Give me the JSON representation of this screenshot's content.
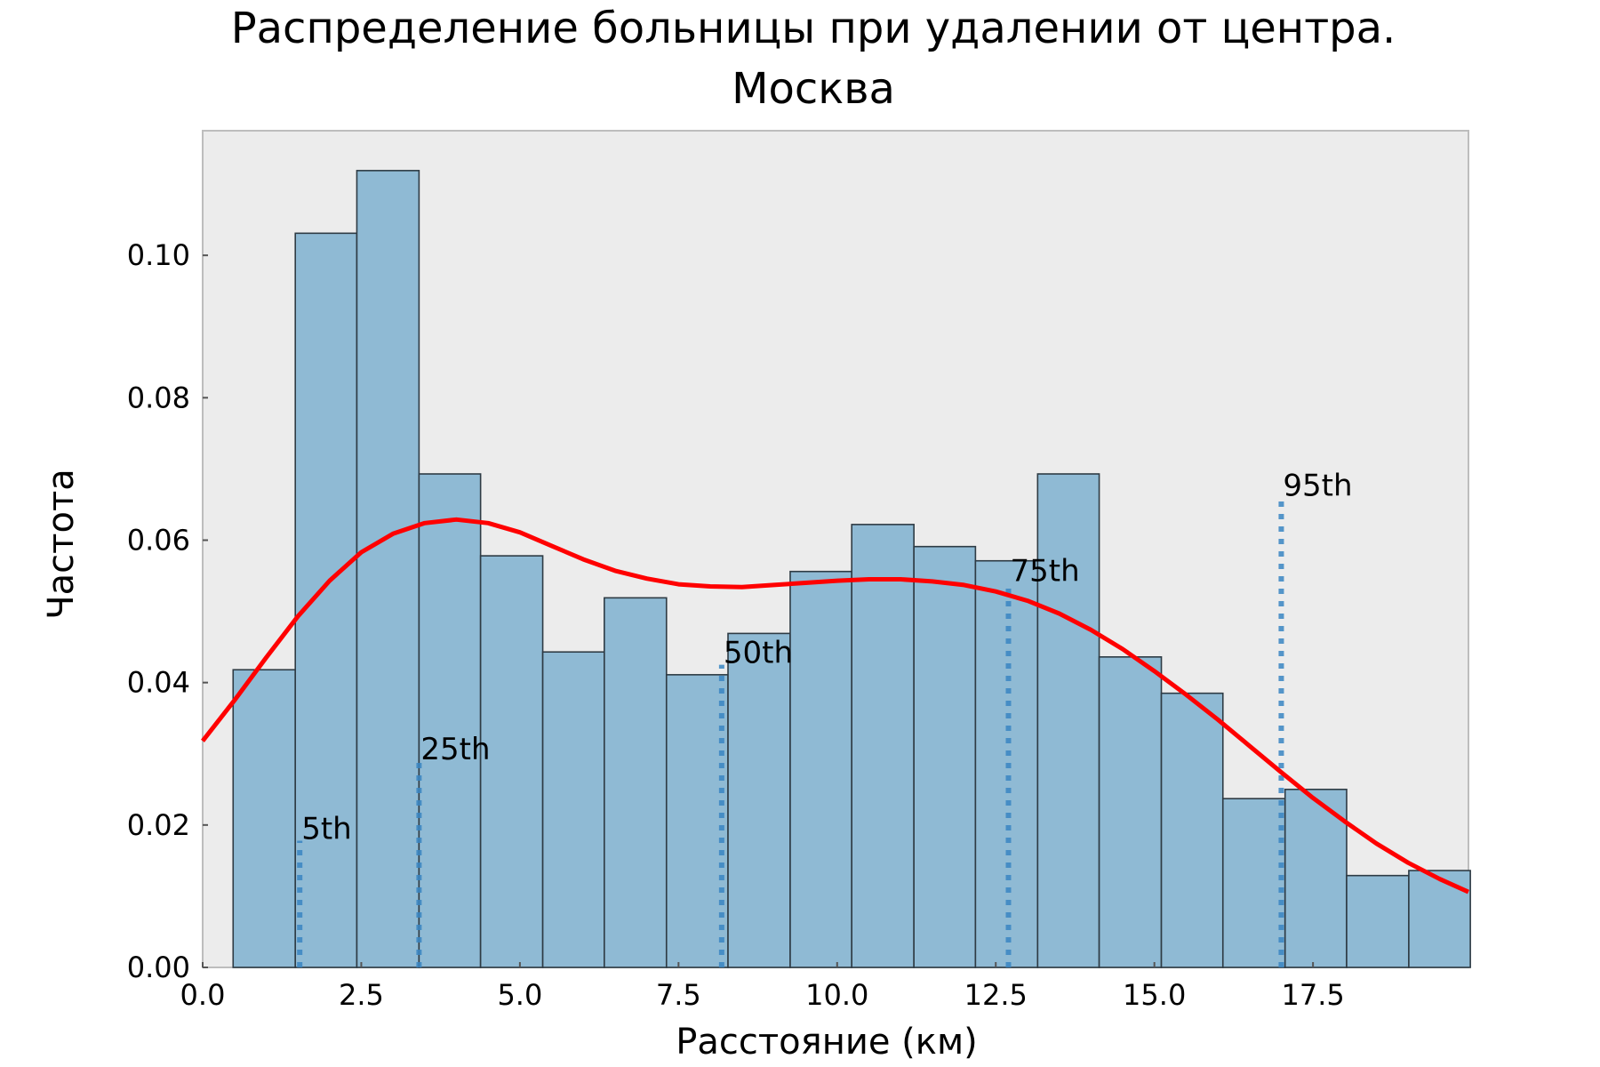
{
  "chart_data": {
    "type": "bar",
    "title": "Распределение больницы при удалении от центра.",
    "subtitle": "Москва",
    "xlabel": "Расстояние (км)",
    "ylabel": "Частота",
    "xlim": [
      0,
      19.95
    ],
    "ylim": [
      0,
      0.1175
    ],
    "x_ticks": [
      "0.0",
      "2.5",
      "5.0",
      "7.5",
      "10.0",
      "12.5",
      "15.0",
      "17.5"
    ],
    "x_tick_values": [
      0,
      2.5,
      5.0,
      7.5,
      10.0,
      12.5,
      15.0,
      17.5
    ],
    "y_ticks": [
      "0.00",
      "0.02",
      "0.04",
      "0.06",
      "0.08",
      "0.10"
    ],
    "y_tick_values": [
      0,
      0.02,
      0.04,
      0.06,
      0.08,
      0.1
    ],
    "grid": false,
    "bar_color": "#8fbad4",
    "bar_edge_color": "#2e3b44",
    "background_color": "#ececec",
    "kde_color": "#ff0000",
    "percentile_color": "#3a86c3",
    "bins": [
      {
        "x0": 0.48,
        "x1": 1.46,
        "value": 0.0418
      },
      {
        "x0": 1.46,
        "x1": 2.43,
        "value": 0.1031
      },
      {
        "x0": 2.43,
        "x1": 3.41,
        "value": 0.1119
      },
      {
        "x0": 3.41,
        "x1": 4.38,
        "value": 0.0693
      },
      {
        "x0": 4.38,
        "x1": 5.36,
        "value": 0.0578
      },
      {
        "x0": 5.36,
        "x1": 6.33,
        "value": 0.0443
      },
      {
        "x0": 6.33,
        "x1": 7.31,
        "value": 0.0519
      },
      {
        "x0": 7.31,
        "x1": 8.28,
        "value": 0.0411
      },
      {
        "x0": 8.28,
        "x1": 9.26,
        "value": 0.0469
      },
      {
        "x0": 9.26,
        "x1": 10.23,
        "value": 0.0556
      },
      {
        "x0": 10.23,
        "x1": 11.21,
        "value": 0.0622
      },
      {
        "x0": 11.21,
        "x1": 12.18,
        "value": 0.0591
      },
      {
        "x0": 12.18,
        "x1": 13.16,
        "value": 0.0571
      },
      {
        "x0": 13.16,
        "x1": 14.13,
        "value": 0.0693
      },
      {
        "x0": 14.13,
        "x1": 15.11,
        "value": 0.0436
      },
      {
        "x0": 15.11,
        "x1": 16.08,
        "value": 0.0385
      },
      {
        "x0": 16.08,
        "x1": 17.06,
        "value": 0.0237
      },
      {
        "x0": 17.06,
        "x1": 18.03,
        "value": 0.025
      },
      {
        "x0": 18.03,
        "x1": 19.01,
        "value": 0.0129
      },
      {
        "x0": 19.01,
        "x1": 19.98,
        "value": 0.0136
      }
    ],
    "kde": {
      "x": [
        0.0,
        0.5,
        1.0,
        1.5,
        2.0,
        2.5,
        3.0,
        3.5,
        4.0,
        4.5,
        5.0,
        5.5,
        6.0,
        6.5,
        7.0,
        7.5,
        8.0,
        8.5,
        9.0,
        9.5,
        10.0,
        10.5,
        11.0,
        11.5,
        12.0,
        12.5,
        13.0,
        13.5,
        14.0,
        14.5,
        15.0,
        15.5,
        16.0,
        16.5,
        17.0,
        17.5,
        18.0,
        18.5,
        19.0,
        19.5,
        19.95
      ],
      "y": [
        0.0318,
        0.0375,
        0.0435,
        0.0493,
        0.0543,
        0.0583,
        0.0609,
        0.0624,
        0.0629,
        0.0624,
        0.0611,
        0.0592,
        0.0573,
        0.0557,
        0.0546,
        0.0538,
        0.0535,
        0.0534,
        0.0537,
        0.054,
        0.0543,
        0.0545,
        0.0545,
        0.0542,
        0.0537,
        0.0528,
        0.0515,
        0.0497,
        0.0474,
        0.0447,
        0.0416,
        0.0383,
        0.0348,
        0.0311,
        0.0274,
        0.0238,
        0.0205,
        0.0174,
        0.0147,
        0.0124,
        0.0106
      ]
    },
    "percentiles": [
      {
        "label": "5th",
        "x": 1.53,
        "height": 0.0178
      },
      {
        "label": "25th",
        "x": 3.41,
        "height": 0.029
      },
      {
        "label": "50th",
        "x": 8.18,
        "height": 0.0425
      },
      {
        "label": "75th",
        "x": 12.7,
        "height": 0.054
      },
      {
        "label": "95th",
        "x": 17.0,
        "height": 0.066
      }
    ]
  }
}
